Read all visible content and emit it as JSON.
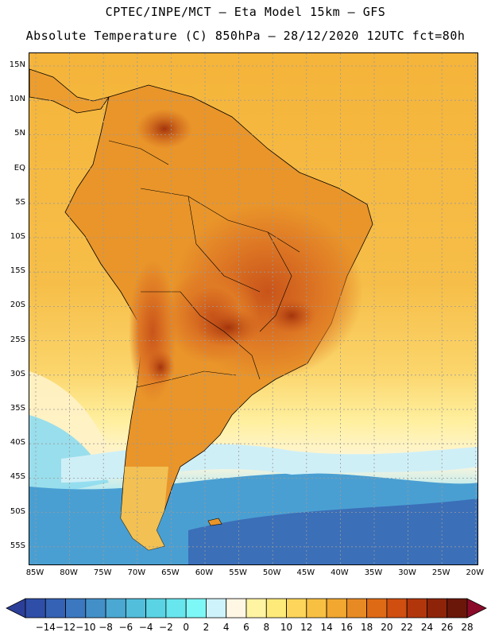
{
  "header": {
    "line1": "CPTEC/INPE/MCT –  Eta Model 15km – GFS",
    "line2": "Absolute Temperature (C) 850hPa – 28/12/2020 12UTC fct=80h"
  },
  "map": {
    "lat_labels": [
      "15N",
      "10N",
      "5N",
      "EQ",
      "5S",
      "10S",
      "15S",
      "20S",
      "25S",
      "30S",
      "35S",
      "40S",
      "45S",
      "50S",
      "55S"
    ],
    "lon_labels": [
      "85W",
      "80W",
      "75W",
      "70W",
      "65W",
      "60W",
      "55W",
      "50W",
      "45W",
      "40W",
      "35W",
      "30W",
      "25W",
      "20W"
    ]
  },
  "colorbar": {
    "labels": [
      "-14",
      "-12",
      "-10",
      "-8",
      "-6",
      "-4",
      "-2",
      "0",
      "2",
      "4",
      "6",
      "8",
      "10",
      "12",
      "14",
      "16",
      "18",
      "20",
      "22",
      "24",
      "26",
      "28"
    ],
    "colors": [
      "#2b3f99",
      "#2e4ea8",
      "#3562b4",
      "#3b78c0",
      "#4390c9",
      "#4aa8d2",
      "#52bedb",
      "#5ad4e4",
      "#68e6ee",
      "#7ef7f7",
      "#cff3fb",
      "#fff7e4",
      "#fff4a2",
      "#feea78",
      "#fdd55a",
      "#f8c042",
      "#f1a730",
      "#e88a23",
      "#df6a16",
      "#cf4e10",
      "#b2360c",
      "#8d240a",
      "#6a170a",
      "#8a0a2a"
    ]
  }
}
